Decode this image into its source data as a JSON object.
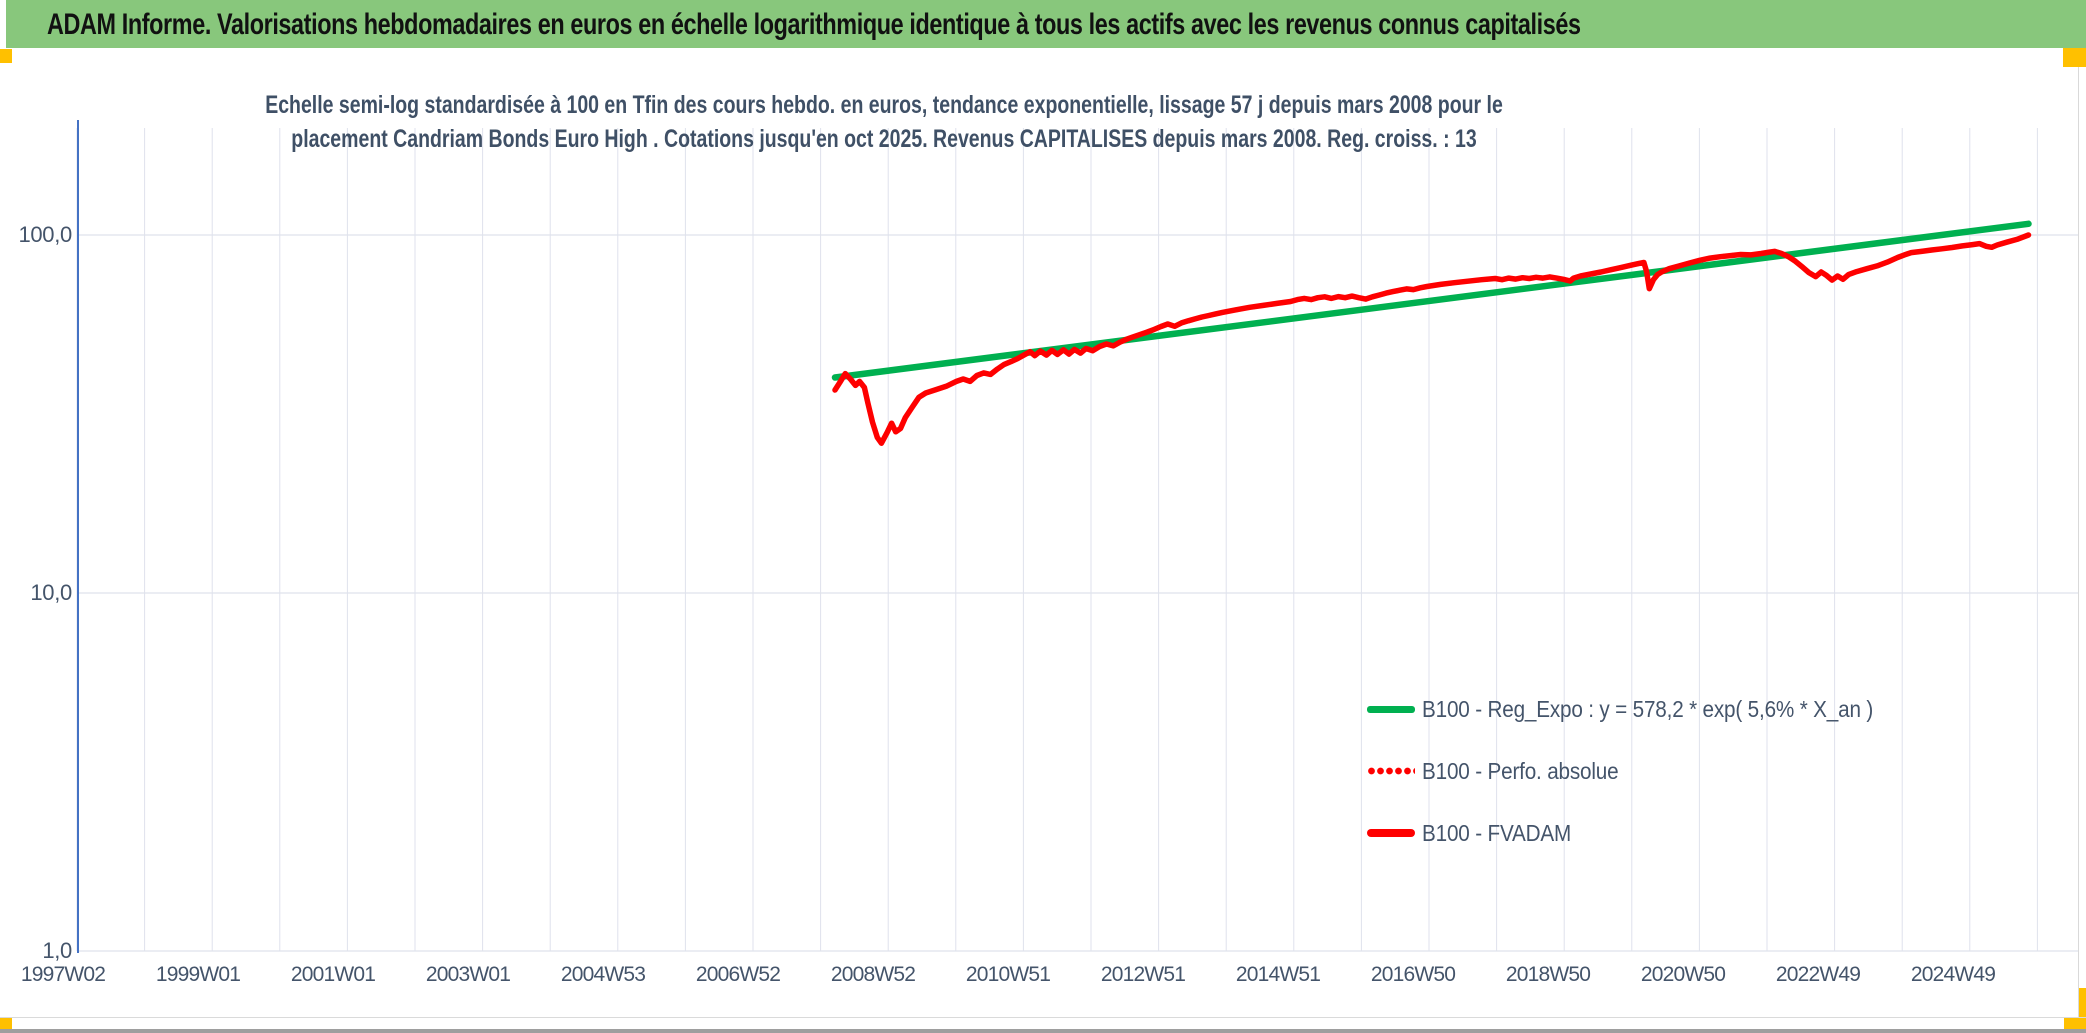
{
  "header": {
    "title": "ADAM Informe. Valorisations hebdomadaires en euros en échelle logarithmique identique à tous les actifs avec les revenus connus capitalisés",
    "bg_color": "#88c77c",
    "accent_color": "#ffc000"
  },
  "chart_data": {
    "type": "line",
    "title_line1": "Echelle semi-log standardisée à 100 en Tfin des cours hebdo. en euros, tendance exponentielle, lissage 57 j depuis mars 2008 pour le",
    "title_line2": "placement Candriam Bonds Euro High . Cotations jusqu'en oct 2025. Revenus CAPITALISES depuis mars 2008. Reg. croiss. : 13",
    "y_axis": {
      "scale": "log",
      "range": [
        1,
        200
      ],
      "ticks": [
        {
          "label": "100,0",
          "value": 100
        },
        {
          "label": "10,0",
          "value": 10
        },
        {
          "label": "1,0",
          "value": 1
        }
      ]
    },
    "x_axis": {
      "unit": "ISO week",
      "range_years": [
        1997.0,
        2026.5
      ],
      "tick_labels": [
        "1997W02",
        "1999W01",
        "2001W01",
        "2003W01",
        "2004W53",
        "2006W52",
        "2008W52",
        "2010W51",
        "2012W51",
        "2014W51",
        "2016W50",
        "2018W50",
        "2020W50",
        "2022W49",
        "2024W49"
      ]
    },
    "grid": {
      "vertical_yearly": true,
      "horizontal_decades": true
    },
    "legend_position": "inside-right-lower",
    "legend": [
      {
        "label": "B100 - Reg_Expo : y = 578,2 * exp( 5,6% *  X_an )",
        "color": "#00b050",
        "style": "solid"
      },
      {
        "label": "B100 - Perfo. absolue",
        "color": "#fe0000",
        "style": "dotted"
      },
      {
        "label": "B100 - FVADAM",
        "color": "#fe0000",
        "style": "solid"
      }
    ],
    "series": [
      {
        "name": "B100 - Reg_Expo : y = 578,2 * exp( 5,6% *  X_an )",
        "color": "#00b050",
        "style": "solid",
        "width": 6.5,
        "points": [
          [
            2008.32,
            40.0
          ],
          [
            2025.82,
            107.5
          ]
        ]
      },
      {
        "name": "B100 - Perfo. absolue",
        "color": "#fe0000",
        "style": "dotted",
        "width": 5,
        "points_same_as": "B100 - FVADAM"
      },
      {
        "name": "B100 - FVADAM",
        "color": "#fe0000",
        "style": "solid",
        "width": 5.5,
        "points": [
          [
            2008.32,
            36.9
          ],
          [
            2008.4,
            39.0
          ],
          [
            2008.47,
            41.0
          ],
          [
            2008.55,
            39.5
          ],
          [
            2008.62,
            38.0
          ],
          [
            2008.68,
            39.0
          ],
          [
            2008.75,
            37.5
          ],
          [
            2008.8,
            34.0
          ],
          [
            2008.87,
            30.0
          ],
          [
            2008.94,
            27.2
          ],
          [
            2009.0,
            26.2
          ],
          [
            2009.08,
            28.0
          ],
          [
            2009.15,
            29.8
          ],
          [
            2009.21,
            28.2
          ],
          [
            2009.28,
            28.8
          ],
          [
            2009.35,
            30.9
          ],
          [
            2009.45,
            33.0
          ],
          [
            2009.55,
            35.2
          ],
          [
            2009.65,
            36.2
          ],
          [
            2009.8,
            37.0
          ],
          [
            2009.95,
            37.8
          ],
          [
            2010.1,
            39.0
          ],
          [
            2010.2,
            39.6
          ],
          [
            2010.3,
            39.0
          ],
          [
            2010.4,
            40.5
          ],
          [
            2010.5,
            41.2
          ],
          [
            2010.6,
            40.8
          ],
          [
            2010.7,
            42.2
          ],
          [
            2010.8,
            43.5
          ],
          [
            2010.9,
            44.3
          ],
          [
            2011.0,
            45.2
          ],
          [
            2011.1,
            46.3
          ],
          [
            2011.18,
            47.2
          ],
          [
            2011.25,
            46.0
          ],
          [
            2011.33,
            47.4
          ],
          [
            2011.42,
            46.2
          ],
          [
            2011.5,
            47.6
          ],
          [
            2011.58,
            46.4
          ],
          [
            2011.67,
            47.8
          ],
          [
            2011.75,
            46.5
          ],
          [
            2011.83,
            47.9
          ],
          [
            2011.92,
            46.8
          ],
          [
            2012.0,
            48.2
          ],
          [
            2012.1,
            47.5
          ],
          [
            2012.2,
            48.8
          ],
          [
            2012.3,
            49.6
          ],
          [
            2012.4,
            49.0
          ],
          [
            2012.5,
            50.2
          ],
          [
            2012.6,
            51.2
          ],
          [
            2012.7,
            52.0
          ],
          [
            2012.8,
            52.8
          ],
          [
            2012.9,
            53.6
          ],
          [
            2013.0,
            54.5
          ],
          [
            2013.1,
            55.5
          ],
          [
            2013.2,
            56.4
          ],
          [
            2013.3,
            55.6
          ],
          [
            2013.4,
            56.8
          ],
          [
            2013.5,
            57.6
          ],
          [
            2013.6,
            58.3
          ],
          [
            2013.7,
            59.0
          ],
          [
            2013.8,
            59.6
          ],
          [
            2013.9,
            60.2
          ],
          [
            2014.0,
            60.8
          ],
          [
            2014.2,
            61.8
          ],
          [
            2014.4,
            62.8
          ],
          [
            2014.6,
            63.6
          ],
          [
            2014.8,
            64.4
          ],
          [
            2015.0,
            65.2
          ],
          [
            2015.1,
            66.0
          ],
          [
            2015.2,
            66.5
          ],
          [
            2015.3,
            66.0
          ],
          [
            2015.4,
            66.8
          ],
          [
            2015.5,
            67.2
          ],
          [
            2015.6,
            66.5
          ],
          [
            2015.7,
            67.3
          ],
          [
            2015.8,
            66.8
          ],
          [
            2015.9,
            67.5
          ],
          [
            2016.0,
            66.8
          ],
          [
            2016.1,
            66.2
          ],
          [
            2016.2,
            67.2
          ],
          [
            2016.3,
            68.0
          ],
          [
            2016.4,
            68.8
          ],
          [
            2016.5,
            69.5
          ],
          [
            2016.6,
            70.1
          ],
          [
            2016.7,
            70.7
          ],
          [
            2016.8,
            70.4
          ],
          [
            2016.9,
            71.2
          ],
          [
            2017.0,
            71.8
          ],
          [
            2017.2,
            72.8
          ],
          [
            2017.4,
            73.6
          ],
          [
            2017.6,
            74.3
          ],
          [
            2017.8,
            75.0
          ],
          [
            2018.0,
            75.6
          ],
          [
            2018.1,
            75.0
          ],
          [
            2018.2,
            75.8
          ],
          [
            2018.3,
            75.3
          ],
          [
            2018.4,
            76.0
          ],
          [
            2018.5,
            75.6
          ],
          [
            2018.6,
            76.2
          ],
          [
            2018.7,
            75.8
          ],
          [
            2018.8,
            76.4
          ],
          [
            2018.9,
            75.8
          ],
          [
            2019.0,
            75.2
          ],
          [
            2019.1,
            74.4
          ],
          [
            2019.15,
            75.8
          ],
          [
            2019.25,
            76.8
          ],
          [
            2019.4,
            77.8
          ],
          [
            2019.55,
            78.8
          ],
          [
            2019.7,
            80.0
          ],
          [
            2019.85,
            81.2
          ],
          [
            2020.0,
            82.4
          ],
          [
            2020.1,
            83.2
          ],
          [
            2020.18,
            83.8
          ],
          [
            2020.22,
            79.0
          ],
          [
            2020.26,
            70.8
          ],
          [
            2020.32,
            75.0
          ],
          [
            2020.38,
            77.5
          ],
          [
            2020.45,
            79.0
          ],
          [
            2020.55,
            80.5
          ],
          [
            2020.7,
            82.0
          ],
          [
            2020.85,
            83.5
          ],
          [
            2021.0,
            85.0
          ],
          [
            2021.15,
            86.2
          ],
          [
            2021.3,
            87.0
          ],
          [
            2021.45,
            87.6
          ],
          [
            2021.6,
            88.2
          ],
          [
            2021.75,
            88.0
          ],
          [
            2021.9,
            88.8
          ],
          [
            2022.0,
            89.4
          ],
          [
            2022.1,
            90.0
          ],
          [
            2022.2,
            88.8
          ],
          [
            2022.3,
            87.0
          ],
          [
            2022.4,
            84.5
          ],
          [
            2022.5,
            81.5
          ],
          [
            2022.6,
            78.5
          ],
          [
            2022.7,
            76.5
          ],
          [
            2022.78,
            78.8
          ],
          [
            2022.86,
            77.0
          ],
          [
            2022.94,
            74.8
          ],
          [
            2023.02,
            76.8
          ],
          [
            2023.1,
            75.2
          ],
          [
            2023.18,
            77.5
          ],
          [
            2023.3,
            79.0
          ],
          [
            2023.45,
            80.5
          ],
          [
            2023.6,
            82.0
          ],
          [
            2023.75,
            84.0
          ],
          [
            2023.9,
            86.5
          ],
          [
            2024.0,
            88.0
          ],
          [
            2024.1,
            89.3
          ],
          [
            2024.25,
            90.0
          ],
          [
            2024.4,
            90.8
          ],
          [
            2024.55,
            91.5
          ],
          [
            2024.7,
            92.3
          ],
          [
            2024.85,
            93.2
          ],
          [
            2025.0,
            94.0
          ],
          [
            2025.1,
            94.6
          ],
          [
            2025.2,
            93.0
          ],
          [
            2025.28,
            92.4
          ],
          [
            2025.36,
            93.8
          ],
          [
            2025.5,
            95.5
          ],
          [
            2025.65,
            97.2
          ],
          [
            2025.82,
            100.0
          ]
        ]
      }
    ],
    "colors": {
      "text": "#44546a",
      "gridline": "#dfe2ec",
      "y_axis_line": "#4472c4",
      "trend_green": "#00b050",
      "series_red": "#fe0000"
    }
  }
}
